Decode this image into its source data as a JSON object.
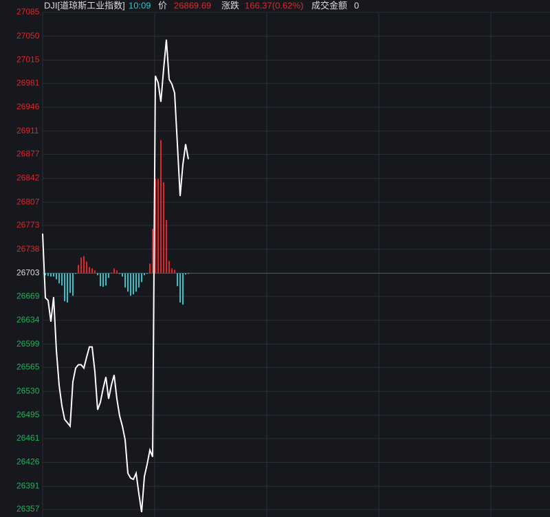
{
  "chart_data": {
    "type": "line",
    "title": "DJI[道琼斯工业指数]",
    "time": "10:09",
    "price_label": "价",
    "price": 26869.69,
    "change_label": "涨跌",
    "change": "166.37(0.62%)",
    "amount_label": "成交金额",
    "amount": 0,
    "ylim": [
      26357,
      27085
    ],
    "yticks": [
      27085,
      27050,
      27015,
      26981,
      26946,
      26911,
      26877,
      26842,
      26807,
      26773,
      26738,
      26703,
      26669,
      26634,
      26599,
      26565,
      26530,
      26495,
      26461,
      26426,
      26391,
      26357
    ],
    "grid": true,
    "reference": 26703,
    "up_color": "#e0262b",
    "down_color": "#2fc2c9",
    "series": [
      {
        "color": "#ffffff",
        "values": [
          26761,
          26667,
          26663,
          26632,
          26668,
          26590,
          26539,
          26509,
          26489,
          26484,
          26479,
          26544,
          26564,
          26569,
          26569,
          26564,
          26580,
          26595,
          26595,
          26559,
          26503,
          26514,
          26534,
          26551,
          26519,
          26539,
          26554,
          26519,
          26494,
          26479,
          26459,
          26410,
          26403,
          26401,
          26410,
          26380,
          26353,
          26405,
          26423,
          26444,
          26434,
          26992,
          26982,
          26954,
          27002,
          27045,
          26987,
          26980,
          26967,
          26892,
          26816,
          26862,
          26892,
          26870
        ]
      }
    ],
    "bars": {
      "values": [
        null,
        26700,
        26699,
        26698,
        26698,
        26694,
        26688,
        26685,
        26662,
        26660,
        26674,
        26670,
        26702,
        26715,
        26726,
        26728,
        26720,
        26712,
        26710,
        26707,
        26700,
        26684,
        26683,
        26685,
        26696,
        26704,
        26710,
        26707,
        26702,
        26698,
        26682,
        26676,
        26670,
        26672,
        26676,
        26682,
        26690,
        26700,
        26702,
        26717,
        26768,
        26841,
        26841,
        26898,
        26836,
        26781,
        26721,
        26710,
        26708,
        26684,
        26660,
        26657,
        26701,
        26702
      ]
    }
  }
}
